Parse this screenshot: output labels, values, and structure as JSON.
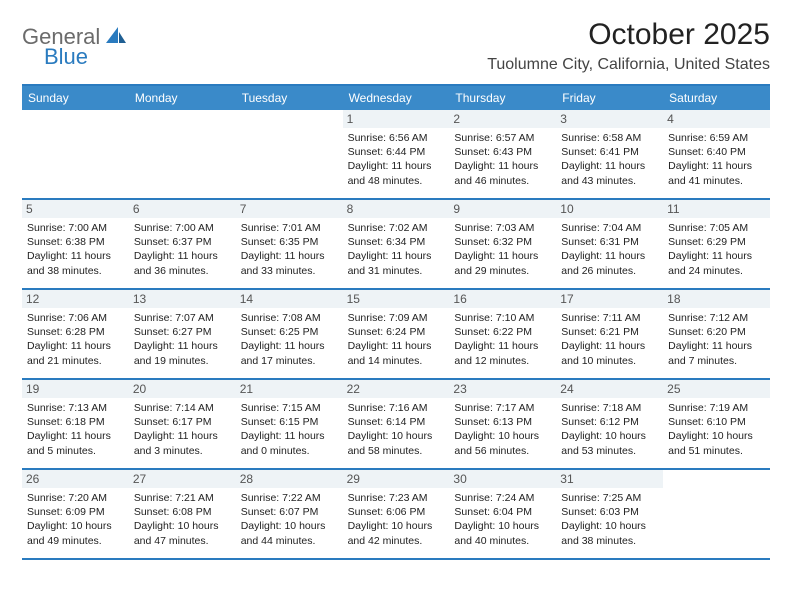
{
  "logo": {
    "part1": "General",
    "part2": "Blue"
  },
  "title": "October 2025",
  "location": "Tuolumne City, California, United States",
  "header_bg": "#3a8ac9",
  "border_color": "#2a7bbf",
  "daynum_bg": "#eef3f6",
  "day_names": [
    "Sunday",
    "Monday",
    "Tuesday",
    "Wednesday",
    "Thursday",
    "Friday",
    "Saturday"
  ],
  "weeks": [
    [
      null,
      null,
      null,
      {
        "n": "1",
        "sr": "6:56 AM",
        "ss": "6:44 PM",
        "dl1": "Daylight: 11 hours",
        "dl2": "and 48 minutes."
      },
      {
        "n": "2",
        "sr": "6:57 AM",
        "ss": "6:43 PM",
        "dl1": "Daylight: 11 hours",
        "dl2": "and 46 minutes."
      },
      {
        "n": "3",
        "sr": "6:58 AM",
        "ss": "6:41 PM",
        "dl1": "Daylight: 11 hours",
        "dl2": "and 43 minutes."
      },
      {
        "n": "4",
        "sr": "6:59 AM",
        "ss": "6:40 PM",
        "dl1": "Daylight: 11 hours",
        "dl2": "and 41 minutes."
      }
    ],
    [
      {
        "n": "5",
        "sr": "7:00 AM",
        "ss": "6:38 PM",
        "dl1": "Daylight: 11 hours",
        "dl2": "and 38 minutes."
      },
      {
        "n": "6",
        "sr": "7:00 AM",
        "ss": "6:37 PM",
        "dl1": "Daylight: 11 hours",
        "dl2": "and 36 minutes."
      },
      {
        "n": "7",
        "sr": "7:01 AM",
        "ss": "6:35 PM",
        "dl1": "Daylight: 11 hours",
        "dl2": "and 33 minutes."
      },
      {
        "n": "8",
        "sr": "7:02 AM",
        "ss": "6:34 PM",
        "dl1": "Daylight: 11 hours",
        "dl2": "and 31 minutes."
      },
      {
        "n": "9",
        "sr": "7:03 AM",
        "ss": "6:32 PM",
        "dl1": "Daylight: 11 hours",
        "dl2": "and 29 minutes."
      },
      {
        "n": "10",
        "sr": "7:04 AM",
        "ss": "6:31 PM",
        "dl1": "Daylight: 11 hours",
        "dl2": "and 26 minutes."
      },
      {
        "n": "11",
        "sr": "7:05 AM",
        "ss": "6:29 PM",
        "dl1": "Daylight: 11 hours",
        "dl2": "and 24 minutes."
      }
    ],
    [
      {
        "n": "12",
        "sr": "7:06 AM",
        "ss": "6:28 PM",
        "dl1": "Daylight: 11 hours",
        "dl2": "and 21 minutes."
      },
      {
        "n": "13",
        "sr": "7:07 AM",
        "ss": "6:27 PM",
        "dl1": "Daylight: 11 hours",
        "dl2": "and 19 minutes."
      },
      {
        "n": "14",
        "sr": "7:08 AM",
        "ss": "6:25 PM",
        "dl1": "Daylight: 11 hours",
        "dl2": "and 17 minutes."
      },
      {
        "n": "15",
        "sr": "7:09 AM",
        "ss": "6:24 PM",
        "dl1": "Daylight: 11 hours",
        "dl2": "and 14 minutes."
      },
      {
        "n": "16",
        "sr": "7:10 AM",
        "ss": "6:22 PM",
        "dl1": "Daylight: 11 hours",
        "dl2": "and 12 minutes."
      },
      {
        "n": "17",
        "sr": "7:11 AM",
        "ss": "6:21 PM",
        "dl1": "Daylight: 11 hours",
        "dl2": "and 10 minutes."
      },
      {
        "n": "18",
        "sr": "7:12 AM",
        "ss": "6:20 PM",
        "dl1": "Daylight: 11 hours",
        "dl2": "and 7 minutes."
      }
    ],
    [
      {
        "n": "19",
        "sr": "7:13 AM",
        "ss": "6:18 PM",
        "dl1": "Daylight: 11 hours",
        "dl2": "and 5 minutes."
      },
      {
        "n": "20",
        "sr": "7:14 AM",
        "ss": "6:17 PM",
        "dl1": "Daylight: 11 hours",
        "dl2": "and 3 minutes."
      },
      {
        "n": "21",
        "sr": "7:15 AM",
        "ss": "6:15 PM",
        "dl1": "Daylight: 11 hours",
        "dl2": "and 0 minutes."
      },
      {
        "n": "22",
        "sr": "7:16 AM",
        "ss": "6:14 PM",
        "dl1": "Daylight: 10 hours",
        "dl2": "and 58 minutes."
      },
      {
        "n": "23",
        "sr": "7:17 AM",
        "ss": "6:13 PM",
        "dl1": "Daylight: 10 hours",
        "dl2": "and 56 minutes."
      },
      {
        "n": "24",
        "sr": "7:18 AM",
        "ss": "6:12 PM",
        "dl1": "Daylight: 10 hours",
        "dl2": "and 53 minutes."
      },
      {
        "n": "25",
        "sr": "7:19 AM",
        "ss": "6:10 PM",
        "dl1": "Daylight: 10 hours",
        "dl2": "and 51 minutes."
      }
    ],
    [
      {
        "n": "26",
        "sr": "7:20 AM",
        "ss": "6:09 PM",
        "dl1": "Daylight: 10 hours",
        "dl2": "and 49 minutes."
      },
      {
        "n": "27",
        "sr": "7:21 AM",
        "ss": "6:08 PM",
        "dl1": "Daylight: 10 hours",
        "dl2": "and 47 minutes."
      },
      {
        "n": "28",
        "sr": "7:22 AM",
        "ss": "6:07 PM",
        "dl1": "Daylight: 10 hours",
        "dl2": "and 44 minutes."
      },
      {
        "n": "29",
        "sr": "7:23 AM",
        "ss": "6:06 PM",
        "dl1": "Daylight: 10 hours",
        "dl2": "and 42 minutes."
      },
      {
        "n": "30",
        "sr": "7:24 AM",
        "ss": "6:04 PM",
        "dl1": "Daylight: 10 hours",
        "dl2": "and 40 minutes."
      },
      {
        "n": "31",
        "sr": "7:25 AM",
        "ss": "6:03 PM",
        "dl1": "Daylight: 10 hours",
        "dl2": "and 38 minutes."
      },
      null
    ]
  ],
  "labels": {
    "sunrise": "Sunrise:",
    "sunset": "Sunset:"
  }
}
